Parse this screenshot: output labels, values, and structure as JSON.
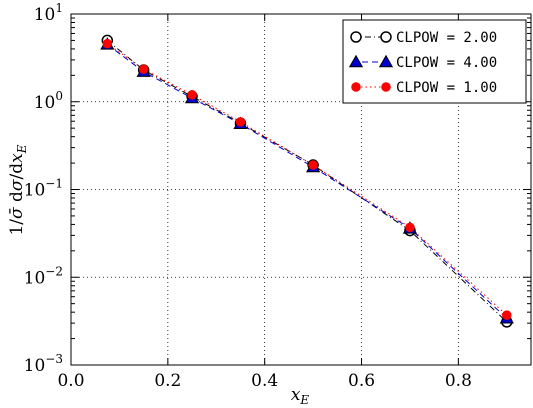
{
  "chart_data": {
    "type": "line",
    "xscale": "linear",
    "yscale": "log",
    "xlim": [
      0.0,
      0.95
    ],
    "ylim": [
      0.001,
      10
    ],
    "grid": true,
    "legend_position": "top-right",
    "xlabel": "x_E",
    "ylabel": "1/σ̄ dσ/dx_E",
    "xticks": [
      "0.0",
      "0.2",
      "0.4",
      "0.6",
      "0.8"
    ],
    "xtick_values": [
      0.0,
      0.2,
      0.4,
      0.6,
      0.8
    ],
    "yticks": [
      {
        "base": "10",
        "exp": "−3",
        "value": 0.001
      },
      {
        "base": "10",
        "exp": "−2",
        "value": 0.01
      },
      {
        "base": "10",
        "exp": "−1",
        "value": 0.1
      },
      {
        "base": "10",
        "exp": "0",
        "value": 1
      },
      {
        "base": "10",
        "exp": "1",
        "value": 10
      }
    ],
    "series": [
      {
        "name": "CLPOW = 2.00",
        "marker": "open-circle",
        "color": "#000000",
        "line": "dash-dot",
        "x": [
          0.075,
          0.15,
          0.25,
          0.35,
          0.5,
          0.7,
          0.9
        ],
        "y": [
          5.0,
          2.3,
          1.15,
          0.57,
          0.19,
          0.034,
          0.0031
        ]
      },
      {
        "name": "CLPOW = 4.00",
        "marker": "triangle",
        "color": "#0000cc",
        "line": "dashed",
        "x": [
          0.075,
          0.15,
          0.25,
          0.35,
          0.5,
          0.7,
          0.9
        ],
        "y": [
          4.5,
          2.2,
          1.1,
          0.56,
          0.18,
          0.036,
          0.0034
        ]
      },
      {
        "name": "CLPOW = 1.00",
        "marker": "filled-circle",
        "color": "#ff0000",
        "line": "dotted",
        "x": [
          0.075,
          0.15,
          0.25,
          0.35,
          0.5,
          0.7,
          0.9
        ],
        "y": [
          4.6,
          2.35,
          1.2,
          0.59,
          0.19,
          0.037,
          0.0037
        ]
      }
    ]
  }
}
